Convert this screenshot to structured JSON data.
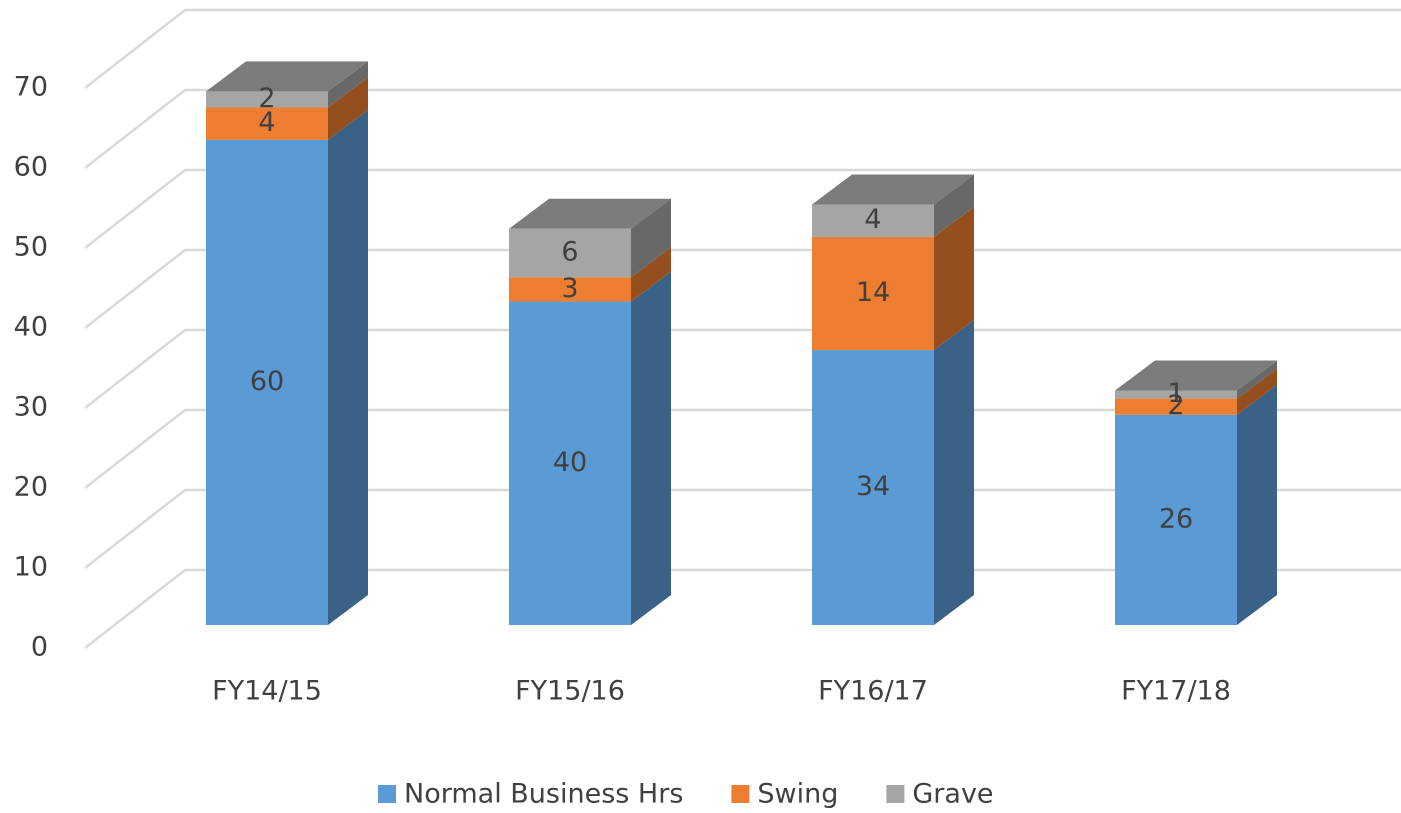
{
  "chart_data": {
    "type": "bar3d-stacked",
    "categories": [
      "FY14/15",
      "FY15/16",
      "FY16/17",
      "FY17/18"
    ],
    "series": [
      {
        "name": "Normal Business Hrs",
        "color": "#5b9bd5",
        "values": [
          60,
          40,
          34,
          26
        ]
      },
      {
        "name": "Swing",
        "color": "#ed7d31",
        "values": [
          4,
          3,
          14,
          2
        ]
      },
      {
        "name": "Grave",
        "color": "#a5a5a5",
        "values": [
          2,
          6,
          4,
          1
        ]
      }
    ],
    "ylim": [
      0,
      70
    ],
    "yticks": [
      0,
      10,
      20,
      30,
      40,
      50,
      60,
      70
    ],
    "grid": true,
    "legend": "bottom"
  }
}
